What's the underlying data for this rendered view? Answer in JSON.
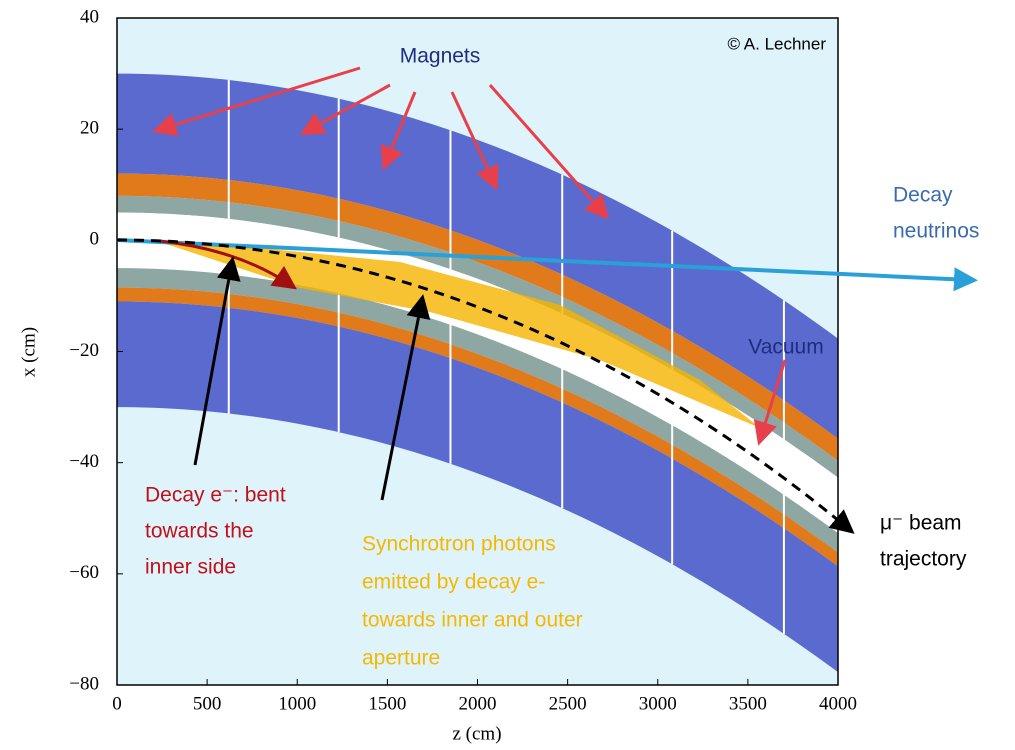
{
  "axes": {
    "xlabel": "z (cm)",
    "ylabel": "x (cm)",
    "xlim": [
      0,
      4000
    ],
    "ylim": [
      -80,
      40
    ],
    "xticks": [
      0,
      500,
      1000,
      1500,
      2000,
      2500,
      3000,
      3500,
      4000
    ],
    "yticks": [
      {
        "value": -80,
        "label": "−80"
      },
      {
        "value": -60,
        "label": "−60"
      },
      {
        "value": -40,
        "label": "−40"
      },
      {
        "value": -20,
        "label": "−20"
      },
      0,
      20,
      40
    ]
  },
  "annotations": {
    "magnets": "Magnets",
    "credit": "© A. Lechner",
    "neutrinos": [
      "Decay",
      "neutrinos"
    ],
    "vacuum": "Vacuum",
    "electron": [
      "Decay e⁻: bent",
      "towards the",
      "inner side"
    ],
    "photons": [
      "Synchrotron photons",
      "emitted by decay e-",
      "towards inner and outer",
      "aperture"
    ],
    "beam": [
      "μ⁻ beam",
      "trajectory"
    ]
  }
}
